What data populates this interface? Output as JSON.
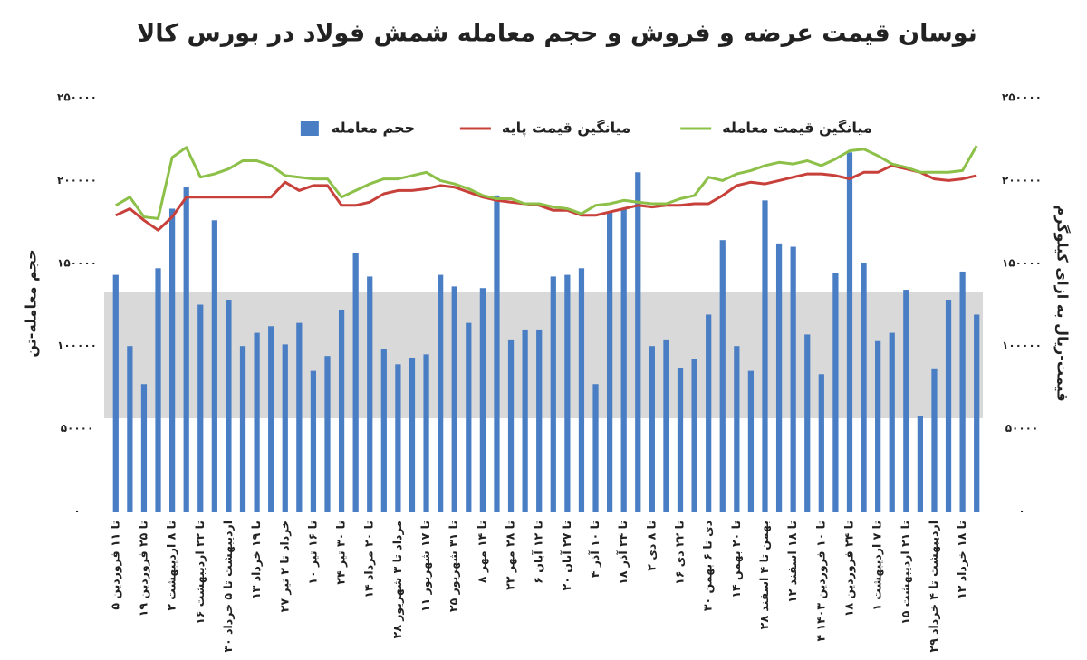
{
  "chart_data": {
    "type": "bar-line",
    "title": "نوسان قیمت عرضه و فروش و حجم معامله شمش فولاد در بورس کالا",
    "y_label": "حجم معامله-تن",
    "y2_label": "قیمت-ریال به ازای کیلوگرم",
    "categories": [
      "۵ تا ۱۱ فروردین",
      null,
      "۱۹ تا ۲۵ فروردین",
      null,
      "۲ تا ۸ اردیبهشت",
      null,
      "۱۶ تا ۲۲ اردیبهشت",
      null,
      "۳۰ اردیبهشت تا ۵ خرداد",
      null,
      "۱۳ تا ۱۹ خرداد",
      null,
      "۲۷ خرداد تا ۲ تیر",
      null,
      "۱۰ تا ۱۶ تیر",
      null,
      "۲۴ تا ۳۰ تیر",
      null,
      "۱۴ تا ۲۰ مرداد",
      null,
      "۲۸ مرداد تا ۳ شهریور",
      null,
      "۱۱ تا ۱۷ شهریور",
      null,
      "۲۵ تا ۳۱ شهریور",
      null,
      "۸ تا ۱۴ مهر",
      null,
      "۲۲ تا ۲۸ مهر",
      null,
      "۶ تا ۱۲ آبان",
      null,
      "۲۰ تا ۲۷ آبان",
      null,
      "۴ تا ۱۰ آذر",
      null,
      "۱۸ تا ۲۴ آذر",
      null,
      "۲ تا ۸ دی",
      null,
      "۱۶ تا ۲۲ دی",
      null,
      "۳۰ دی تا ۶ بهمن",
      null,
      "۱۴ تا ۲۰ بهمن",
      null,
      "۲۸ بهمن تا ۴ اسفند",
      null,
      "۱۲ تا ۱۸ اسفند",
      null,
      "۴ تا ۱۰ فروردین ۱۴۰۳",
      null,
      "۱۸ تا ۲۴ فروردین",
      null,
      "۱ تا ۷ اردیبهشت",
      null,
      "۱۵ تا ۲۱ اردیبهشت",
      null,
      "۲۹ اردیبهشت تا ۴ خرداد",
      null,
      "۱۲ تا ۱۸ خرداد",
      null
    ],
    "series": [
      {
        "name": "حجم معامله",
        "kind": "bar",
        "color": "#4a7ec4",
        "values": [
          143000,
          100000,
          77000,
          147000,
          183000,
          196000,
          125000,
          176000,
          128000,
          100000,
          108000,
          112000,
          101000,
          114000,
          85000,
          94000,
          122000,
          156000,
          142000,
          98000,
          89000,
          93000,
          95000,
          143000,
          136000,
          114000,
          135000,
          191000,
          104000,
          110000,
          110000,
          142000,
          143000,
          147000,
          77000,
          181000,
          183000,
          205000,
          100000,
          104000,
          87000,
          92000,
          119000,
          164000,
          100000,
          85000,
          188000,
          162000,
          160000,
          107000,
          83000,
          144000,
          217000,
          150000,
          103000,
          108000,
          134000,
          58000,
          86000,
          128000,
          145000,
          119000
        ]
      },
      {
        "name": "میانگین قیمت پایه",
        "kind": "line",
        "axis": "y2",
        "color": "#c8403a",
        "values": [
          179000,
          183000,
          176000,
          170000,
          178000,
          190000,
          190000,
          190000,
          190000,
          190000,
          190000,
          190000,
          199000,
          194000,
          197000,
          197000,
          185000,
          185000,
          187000,
          192000,
          194000,
          194000,
          195000,
          197000,
          196000,
          193000,
          190000,
          188000,
          187000,
          186000,
          185000,
          182000,
          182000,
          179000,
          179000,
          181000,
          183000,
          185000,
          184000,
          185000,
          185000,
          186000,
          186000,
          191000,
          197000,
          199000,
          198000,
          200000,
          202000,
          204000,
          204000,
          203000,
          201000,
          205000,
          205000,
          209000,
          207000,
          205000,
          201000,
          200000,
          201000,
          203000
        ]
      },
      {
        "name": "میانگین قیمت معامله",
        "kind": "line",
        "axis": "y2",
        "color": "#8cc048",
        "values": [
          185000,
          190000,
          178000,
          177000,
          214000,
          220000,
          202000,
          204000,
          207000,
          212000,
          212000,
          209000,
          203000,
          202000,
          201000,
          201000,
          190000,
          194000,
          198000,
          201000,
          201000,
          203000,
          205000,
          200000,
          198000,
          195000,
          191000,
          189000,
          189000,
          186000,
          186000,
          184000,
          183000,
          180000,
          185000,
          186000,
          188000,
          187000,
          186000,
          186000,
          189000,
          191000,
          202000,
          200000,
          204000,
          206000,
          209000,
          211000,
          210000,
          212000,
          209000,
          213000,
          218000,
          219000,
          215000,
          210000,
          208000,
          205000,
          205000,
          205000,
          206000,
          221000
        ]
      }
    ],
    "ylim": [
      0,
      250000
    ],
    "yticks": [
      {
        "value": 0,
        "label": "۰"
      },
      {
        "value": 50000,
        "label": "۵۰۰۰۰"
      },
      {
        "value": 100000,
        "label": "۱۰۰۰۰۰"
      },
      {
        "value": 150000,
        "label": "۱۵۰۰۰۰"
      },
      {
        "value": 200000,
        "label": "۲۰۰۰۰۰"
      },
      {
        "value": 250000,
        "label": "۲۵۰۰۰۰"
      }
    ],
    "y2lim": [
      0,
      250000
    ],
    "y2ticks": [
      {
        "value": 0,
        "label": "۰"
      },
      {
        "value": 50000,
        "label": "۵۰۰۰۰"
      },
      {
        "value": 100000,
        "label": "۱۰۰۰۰۰"
      },
      {
        "value": 150000,
        "label": "۱۵۰۰۰۰"
      },
      {
        "value": 200000,
        "label": "۲۰۰۰۰۰"
      },
      {
        "value": 250000,
        "label": "۲۵۰۰۰۰"
      }
    ],
    "grid": false
  }
}
